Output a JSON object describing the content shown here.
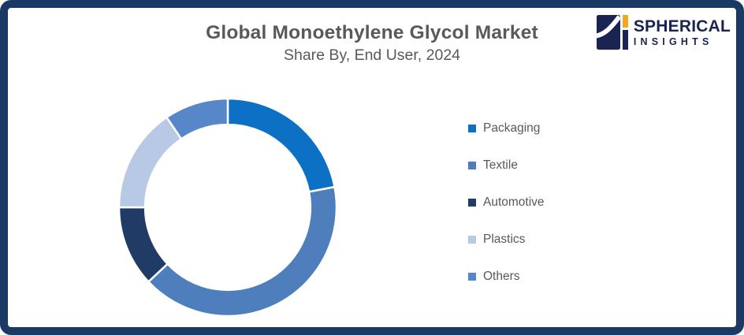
{
  "frame": {
    "border_color": "#1B3A63",
    "background": "#FFFFFF"
  },
  "header": {
    "title": "Global Monoethylene Glycol Market",
    "subtitle": "Share By, End User, 2024",
    "text_color": "#595959"
  },
  "logo": {
    "brand_top": "SPHERICAL",
    "brand_bottom": "INSIGHTS",
    "navy": "#1A2453",
    "orange": "#F2A71E"
  },
  "chart_data": {
    "type": "pie",
    "subtype": "donut",
    "title": "Global Monoethylene Glycol Market",
    "subtitle": "Share By, End User, 2024",
    "categories": [
      "Packaging",
      "Textile",
      "Automotive",
      "Plastics",
      "Others"
    ],
    "values": [
      22,
      41,
      12,
      15.5,
      9.5
    ],
    "values_note": "percent share, estimated from arc angles; no data labels shown",
    "colors": [
      "#0C70C5",
      "#4E7FBC",
      "#1F3B66",
      "#B7C9E4",
      "#5787C9"
    ],
    "start_angle_deg": 0,
    "direction": "clockwise",
    "inner_radius_ratio": 0.76,
    "legend_position": "right",
    "data_labels": false,
    "slice_gap_color": "#FFFFFF"
  },
  "legend": {
    "items": [
      {
        "label": "Packaging",
        "color": "#0C70C5"
      },
      {
        "label": "Textile",
        "color": "#4E7FBC"
      },
      {
        "label": "Automotive",
        "color": "#1F3B66"
      },
      {
        "label": "Plastics",
        "color": "#B7C9E4"
      },
      {
        "label": "Others",
        "color": "#5787C9"
      }
    ]
  }
}
